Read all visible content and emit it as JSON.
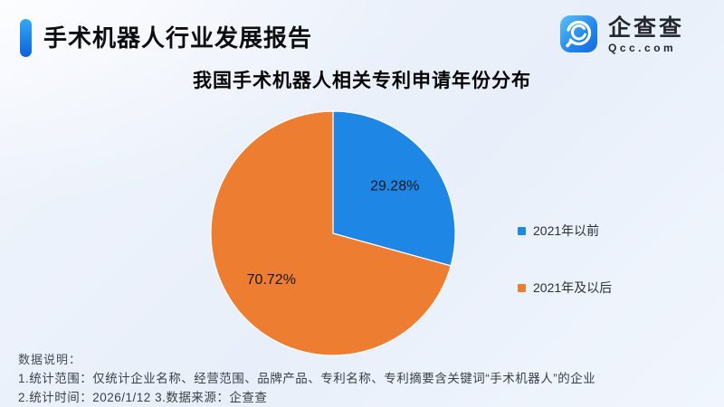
{
  "header": {
    "title": "手术机器人行业发展报告"
  },
  "logo": {
    "name": "企查查",
    "domain": "Qcc.com",
    "icon": "qcc-magnifier-icon",
    "brand_color": "#1E87E5"
  },
  "chart_data": {
    "type": "pie",
    "title": "我国手术机器人相关专利申请年份分布",
    "slices": [
      {
        "label": "2021年以前",
        "value": 29.28,
        "display": "29.28%",
        "color": "#1E87E5"
      },
      {
        "label": "2021年及以后",
        "value": 70.72,
        "display": "70.72%",
        "color": "#ED7D31"
      }
    ],
    "start_angle_deg": 0,
    "direction": "clockwise",
    "legend_position": "right",
    "label_color": "#15181d"
  },
  "notes": {
    "heading": "数据说明：",
    "line1": "1.统计范围：仅统计企业名称、经营范围、品牌产品、专利名称、专利摘要含关键词“手术机器人”的企业",
    "line2": "2.统计时间：2026/1/12  3.数据来源：企查查"
  }
}
